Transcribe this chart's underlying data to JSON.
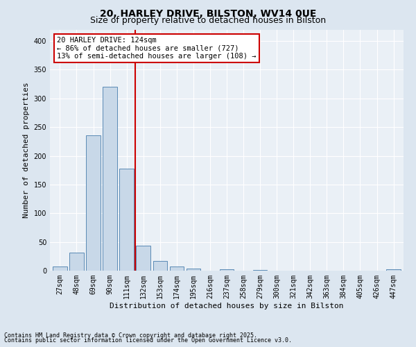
{
  "title1": "20, HARLEY DRIVE, BILSTON, WV14 0UE",
  "title2": "Size of property relative to detached houses in Bilston",
  "xlabel": "Distribution of detached houses by size in Bilston",
  "ylabel": "Number of detached properties",
  "bar_labels": [
    "27sqm",
    "48sqm",
    "69sqm",
    "90sqm",
    "111sqm",
    "132sqm",
    "153sqm",
    "174sqm",
    "195sqm",
    "216sqm",
    "237sqm",
    "258sqm",
    "279sqm",
    "300sqm",
    "321sqm",
    "342sqm",
    "363sqm",
    "384sqm",
    "405sqm",
    "426sqm",
    "447sqm"
  ],
  "bar_values": [
    7,
    31,
    236,
    320,
    178,
    44,
    17,
    7,
    4,
    0,
    3,
    0,
    1,
    0,
    0,
    0,
    0,
    0,
    0,
    0,
    2
  ],
  "bar_color": "#c8d8e8",
  "bar_edge_color": "#5a8ab5",
  "vline_x": 4.5,
  "vline_color": "#cc0000",
  "annotation_text": "20 HARLEY DRIVE: 124sqm\n← 86% of detached houses are smaller (727)\n13% of semi-detached houses are larger (108) →",
  "annotation_box_color": "#ffffff",
  "annotation_box_edge": "#cc0000",
  "ylim": [
    0,
    420
  ],
  "yticks": [
    0,
    50,
    100,
    150,
    200,
    250,
    300,
    350,
    400
  ],
  "footer1": "Contains HM Land Registry data © Crown copyright and database right 2025.",
  "footer2": "Contains public sector information licensed under the Open Government Licence v3.0.",
  "bg_color": "#dce6f0",
  "plot_bg_color": "#eaf0f6",
  "title1_fontsize": 10,
  "title2_fontsize": 9,
  "xlabel_fontsize": 8,
  "ylabel_fontsize": 8,
  "tick_fontsize": 7,
  "footer_fontsize": 6,
  "annotation_fontsize": 7.5
}
